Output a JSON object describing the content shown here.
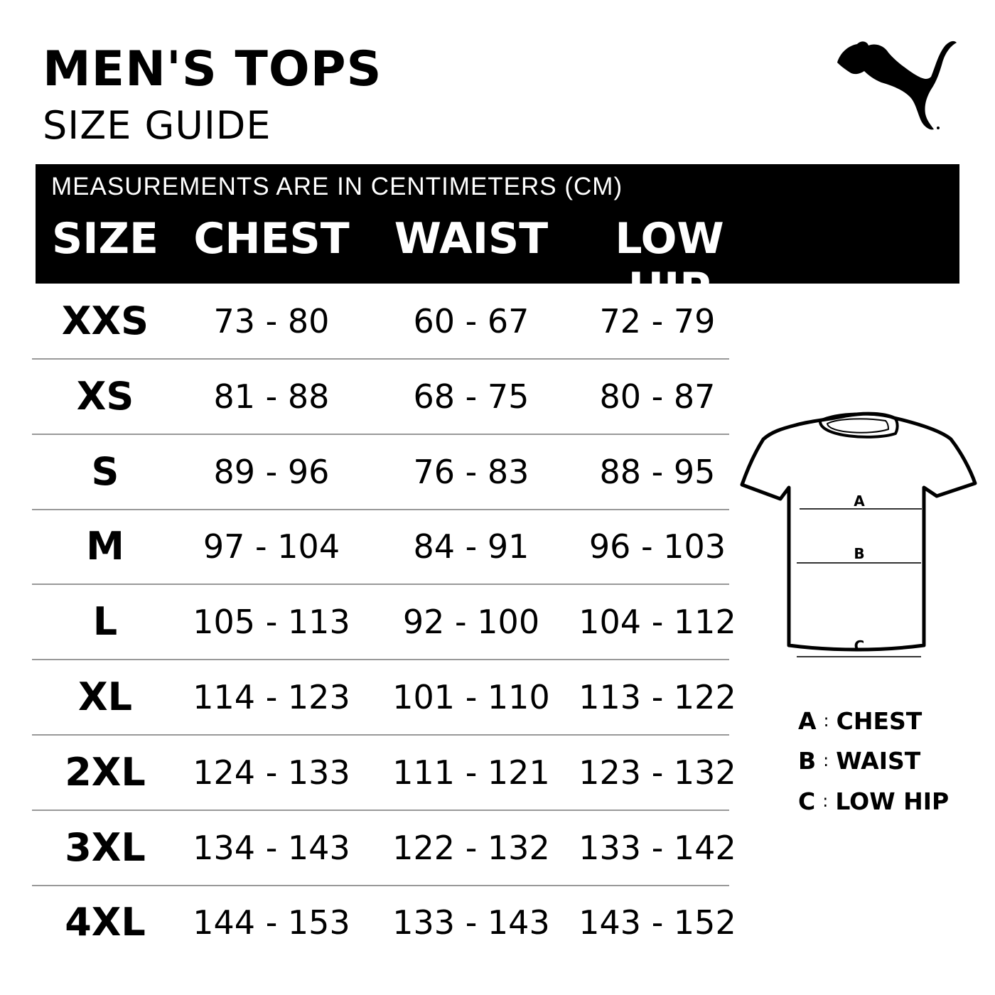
{
  "header": {
    "title": "MEN'S TOPS",
    "subtitle": "SIZE GUIDE",
    "logo": "PUMA"
  },
  "table": {
    "note": "MEASUREMENTS ARE IN CENTIMETERS (CM)",
    "columns": [
      "SIZE",
      "CHEST",
      "WAIST",
      "LOW HIP"
    ],
    "rows": [
      [
        "XXS",
        "73 - 80",
        "60 - 67",
        "72 - 79"
      ],
      [
        "XS",
        "81 - 88",
        "68 - 75",
        "80 - 87"
      ],
      [
        "S",
        "89 - 96",
        "76 - 83",
        "88 - 95"
      ],
      [
        "M",
        "97 - 104",
        "84 - 91",
        "96 - 103"
      ],
      [
        "L",
        "105 - 113",
        "92 - 100",
        "104 - 112"
      ],
      [
        "XL",
        "114 - 123",
        "101 - 110",
        "113 - 122"
      ],
      [
        "2XL",
        "124 - 133",
        "111 - 121",
        "123 - 132"
      ],
      [
        "3XL",
        "134 - 143",
        "122 - 132",
        "133 - 142"
      ],
      [
        "4XL",
        "144 - 153",
        "133 - 143",
        "143 - 152"
      ]
    ]
  },
  "diagram": {
    "markers": [
      "A",
      "B",
      "C"
    ],
    "legend": [
      {
        "key": "A",
        "label": "CHEST"
      },
      {
        "key": "B",
        "label": "WAIST"
      },
      {
        "key": "C",
        "label": "LOW HIP"
      }
    ]
  },
  "colors": {
    "header_bg": "#000000",
    "header_text": "#ffffff",
    "divider": "#999999"
  }
}
